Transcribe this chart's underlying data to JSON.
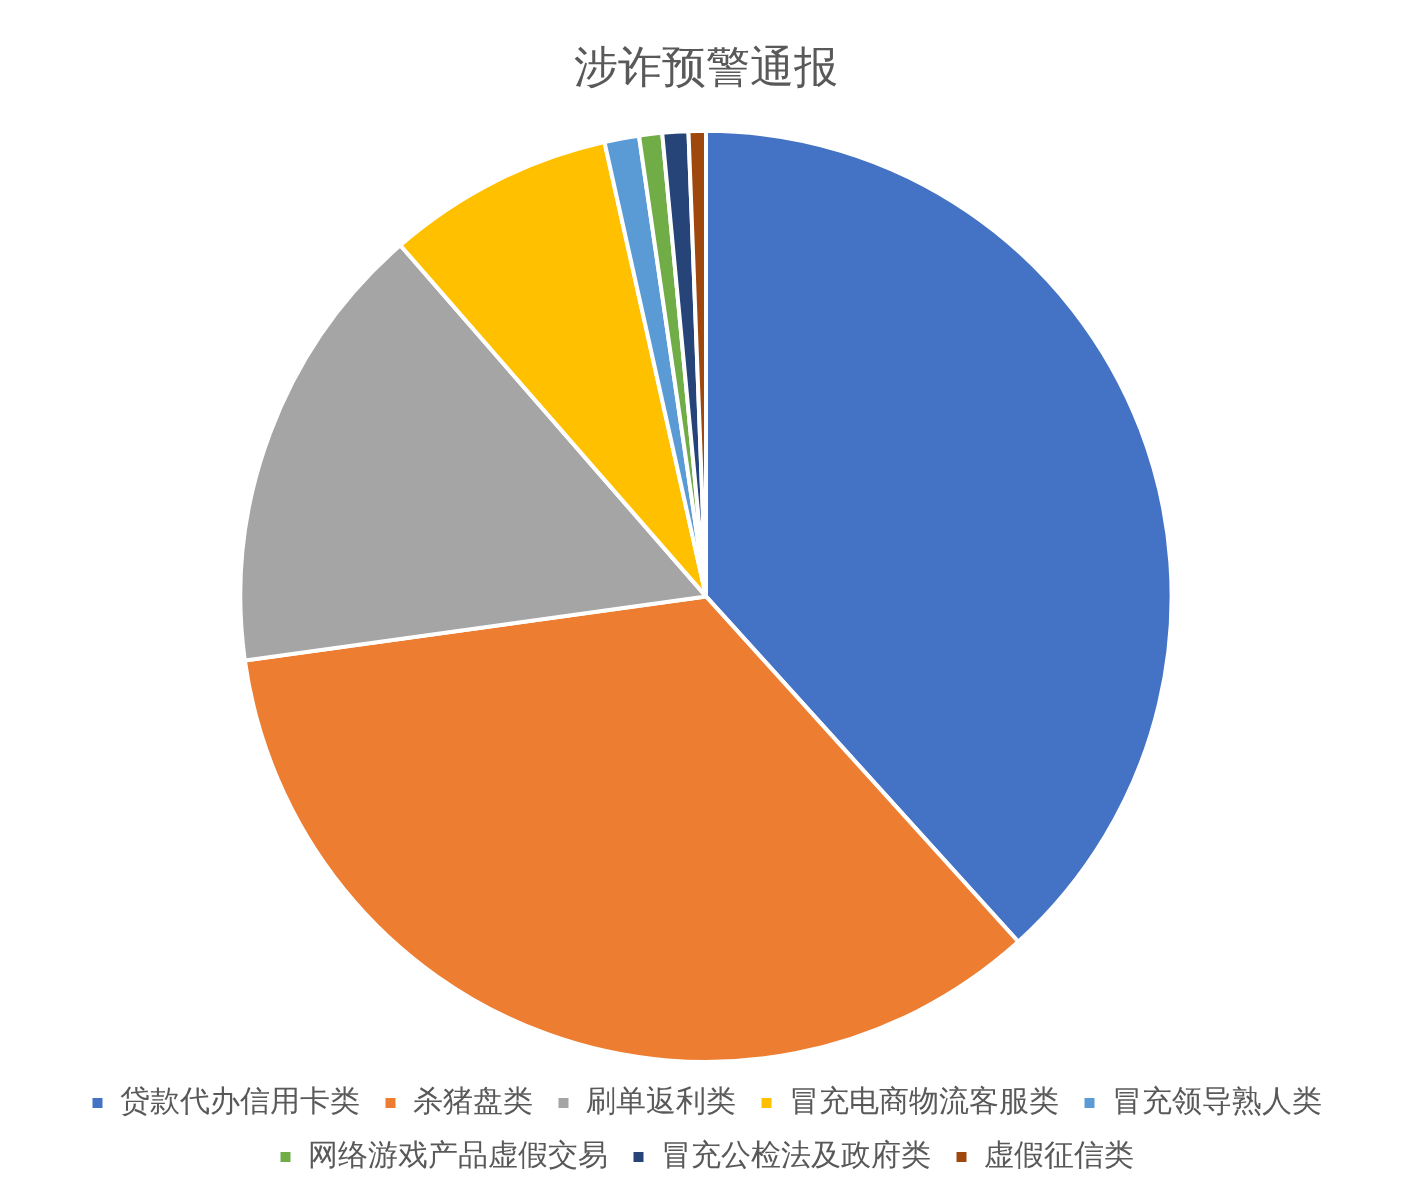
{
  "chart_data": {
    "type": "pie",
    "title": "涉诈预警通报",
    "categories": [
      "贷款代办信用卡类",
      "杀猪盘类",
      "刷单返利类",
      "冒充电商物流客服类",
      "冒充领导熟人类",
      "网络游戏产品虚假交易",
      "冒充公检法及政府类",
      "虚假征信类"
    ],
    "values": [
      38.3,
      34.5,
      15.8,
      7.9,
      1.2,
      0.8,
      0.9,
      0.6
    ],
    "colors": [
      "#4472c4",
      "#ed7d31",
      "#a5a5a5",
      "#ffc000",
      "#5b9bd5",
      "#70ad47",
      "#264478",
      "#9e480e"
    ],
    "legend": "bottom"
  }
}
